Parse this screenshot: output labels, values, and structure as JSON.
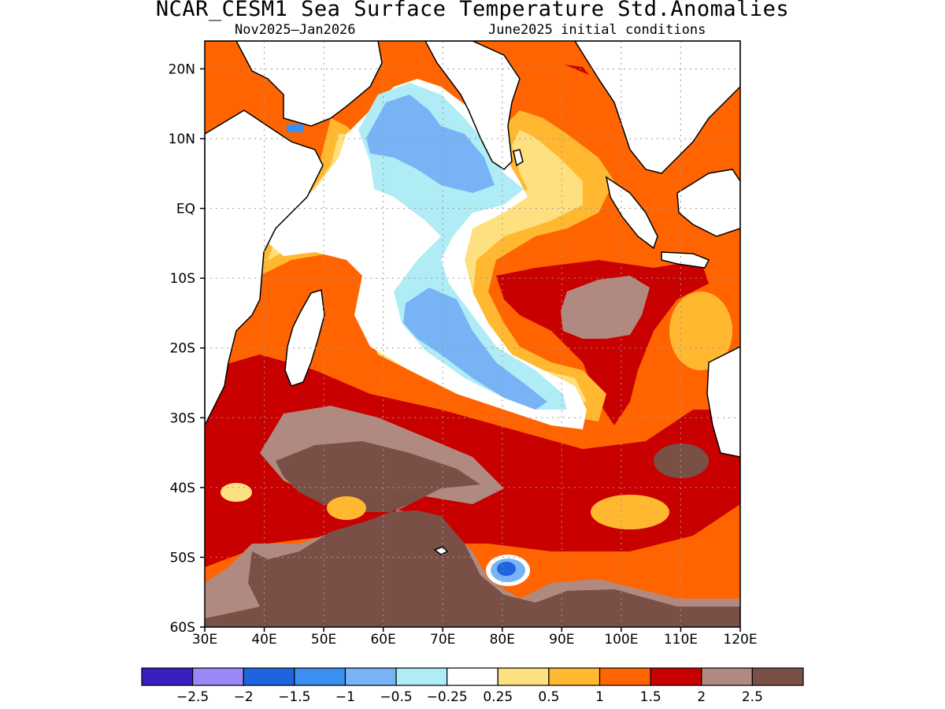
{
  "header": {
    "title": "NCAR_CESM1 Sea Surface Temperature Std.Anomalies",
    "period": "Nov2025–Jan2026",
    "init": "June2025 initial conditions"
  },
  "map": {
    "lon_range": [
      30,
      120
    ],
    "lat_range": [
      -60,
      24
    ],
    "lon_ticks": [
      {
        "v": 30,
        "label": "30E"
      },
      {
        "v": 40,
        "label": "40E"
      },
      {
        "v": 50,
        "label": "50E"
      },
      {
        "v": 60,
        "label": "60E"
      },
      {
        "v": 70,
        "label": "70E"
      },
      {
        "v": 80,
        "label": "80E"
      },
      {
        "v": 90,
        "label": "90E"
      },
      {
        "v": 100,
        "label": "100E"
      },
      {
        "v": 110,
        "label": "110E"
      },
      {
        "v": 120,
        "label": "120E"
      }
    ],
    "lat_ticks": [
      {
        "v": 20,
        "label": "20N"
      },
      {
        "v": 10,
        "label": "10N"
      },
      {
        "v": 0,
        "label": "EQ"
      },
      {
        "v": -10,
        "label": "10S"
      },
      {
        "v": -20,
        "label": "20S"
      },
      {
        "v": -30,
        "label": "30S"
      },
      {
        "v": -40,
        "label": "40S"
      },
      {
        "v": -50,
        "label": "50S"
      },
      {
        "v": -60,
        "label": "60S"
      }
    ],
    "land_color": "#ffffff",
    "coast_color": "#000000"
  },
  "colorbar": {
    "colors": [
      "#3a1fbf",
      "#9b87f5",
      "#1e63e0",
      "#3a8ff0",
      "#78b4f5",
      "#b0ecf5",
      "#ffffff",
      "#ffe080",
      "#ffb830",
      "#ff6400",
      "#c80000",
      "#b08a80",
      "#7a5046"
    ],
    "labels": [
      "−2.5",
      "−2",
      "−1.5",
      "−1",
      "−0.5",
      "−0.25",
      "0.25",
      "0.5",
      "1",
      "1.5",
      "2",
      "2.5"
    ]
  }
}
